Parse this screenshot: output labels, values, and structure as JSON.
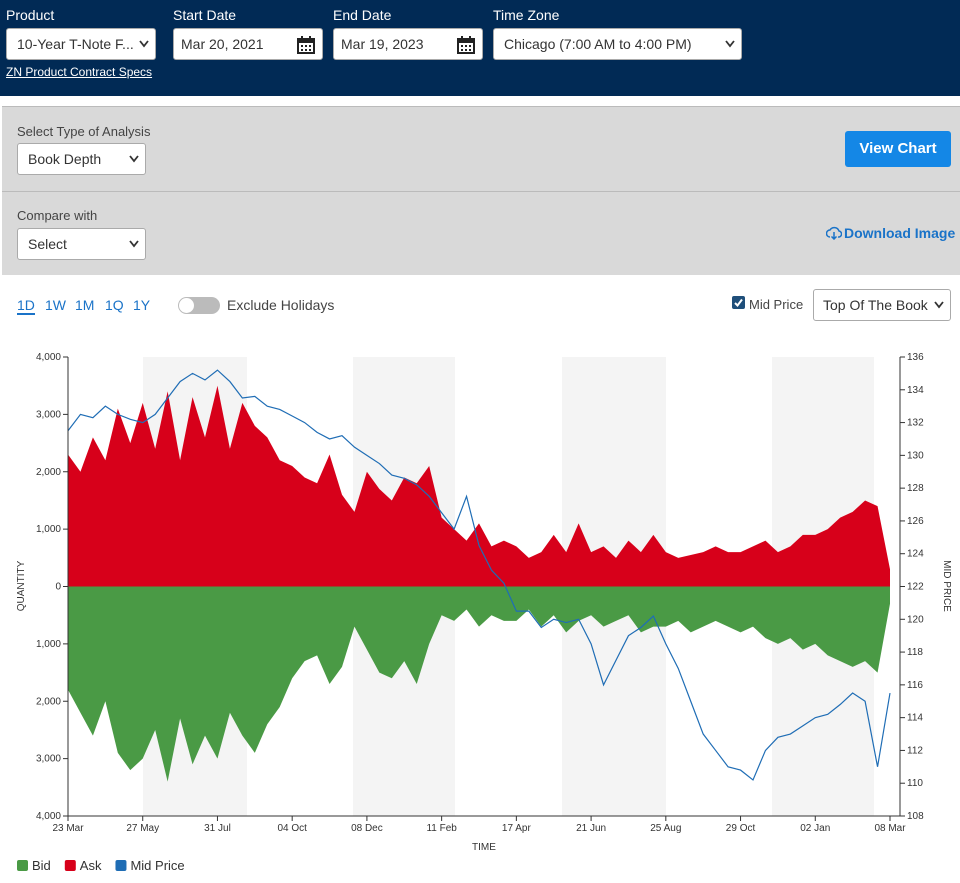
{
  "header": {
    "product_label": "Product",
    "product_value": "10-Year T-Note F...",
    "start_label": "Start Date",
    "start_value": "Mar 20, 2021",
    "end_label": "End Date",
    "end_value": "Mar 19, 2023",
    "tz_label": "Time Zone",
    "tz_value": "Chicago (7:00 AM to 4:00 PM)",
    "specs_link": "ZN Product Contract Specs"
  },
  "controls": {
    "analysis_label": "Select Type of Analysis",
    "analysis_value": "Book Depth",
    "view_button": "View Chart",
    "compare_label": "Compare with",
    "compare_value": "Select",
    "download": "Download Image",
    "ranges": [
      "1D",
      "1W",
      "1M",
      "1Q",
      "1Y"
    ],
    "exclude_holidays": "Exclude Holidays",
    "mid_price_checkbox": "Mid Price",
    "book_select": "Top Of The Book"
  },
  "chart_data": {
    "type": "area",
    "y_label": "QUANTITY",
    "y2_label": "MID PRICE",
    "x_label": "TIME",
    "categories": [
      "23 Mar",
      null,
      null,
      null,
      null,
      null,
      "27 May",
      null,
      null,
      null,
      null,
      null,
      "31 Jul",
      null,
      null,
      null,
      null,
      null,
      "04 Oct",
      null,
      null,
      null,
      null,
      null,
      "08 Dec",
      null,
      null,
      null,
      null,
      null,
      "11 Feb",
      null,
      null,
      null,
      null,
      null,
      "17 Apr",
      null,
      null,
      null,
      null,
      null,
      "21 Jun",
      null,
      null,
      null,
      null,
      null,
      "25 Aug",
      null,
      null,
      null,
      null,
      null,
      "29 Oct",
      null,
      null,
      null,
      null,
      null,
      "02 Jan",
      null,
      null,
      null,
      null,
      null,
      "08 Mar"
    ],
    "series": [
      {
        "name": "Bid",
        "type": "area",
        "color": "#4a9a45",
        "values": [
          -1800,
          -2200,
          -2600,
          -2000,
          -2900,
          -3200,
          -3000,
          -2500,
          -3400,
          -2300,
          -3100,
          -2600,
          -3000,
          -2200,
          -2600,
          -2900,
          -2400,
          -2100,
          -1600,
          -1300,
          -1200,
          -1700,
          -1400,
          -700,
          -1100,
          -1500,
          -1600,
          -1300,
          -1700,
          -1000,
          -500,
          -600,
          -400,
          -700,
          -500,
          -600,
          -600,
          -400,
          -700,
          -500,
          -800,
          -600,
          -500,
          -700,
          -600,
          -500,
          -800,
          -700,
          -700,
          -600,
          -800,
          -700,
          -600,
          -700,
          -800,
          -700,
          -900,
          -1000,
          -900,
          -1100,
          -1000,
          -1200,
          -1300,
          -1400,
          -1300,
          -1500,
          -300
        ]
      },
      {
        "name": "Ask",
        "type": "area",
        "color": "#d7001a",
        "values": [
          2300,
          2000,
          2600,
          2200,
          3100,
          2500,
          3200,
          2400,
          3400,
          2200,
          3300,
          2600,
          3500,
          2400,
          3200,
          2800,
          2600,
          2200,
          2100,
          1900,
          1800,
          2300,
          1600,
          1300,
          2000,
          1700,
          1500,
          1900,
          1800,
          2100,
          1200,
          1000,
          800,
          1100,
          700,
          800,
          700,
          500,
          600,
          900,
          600,
          1100,
          600,
          700,
          500,
          800,
          600,
          900,
          600,
          500,
          550,
          600,
          700,
          600,
          600,
          700,
          800,
          600,
          700,
          900,
          900,
          1000,
          1200,
          1300,
          1500,
          1400,
          300
        ]
      },
      {
        "name": "Mid Price",
        "type": "line",
        "axis": "y2",
        "color": "#1f6db5",
        "values": [
          131.5,
          132.5,
          132.3,
          133,
          132.5,
          132.2,
          132,
          132.5,
          133.5,
          134.5,
          135,
          134.6,
          135.2,
          134.5,
          133.5,
          133.6,
          133,
          132.8,
          132.4,
          132,
          131.4,
          131,
          131.2,
          130.5,
          130,
          129.5,
          128.8,
          128.6,
          128.2,
          127.5,
          126.5,
          125.5,
          127.5,
          124.5,
          123,
          122.2,
          120.5,
          120.5,
          119.5,
          120,
          119.8,
          120,
          118.5,
          116,
          117.5,
          119,
          119.5,
          120.2,
          118.5,
          117,
          115,
          113,
          112,
          111,
          110.8,
          110.2,
          112,
          112.8,
          113,
          113.5,
          114,
          114.2,
          114.8,
          115.5,
          115,
          111,
          115.5
        ]
      }
    ],
    "ylim": [
      -4000,
      4000
    ],
    "yticks": [
      {
        "value": 4000,
        "label": "4,000"
      },
      {
        "value": 3000,
        "label": "3,000"
      },
      {
        "value": 2000,
        "label": "2,000"
      },
      {
        "value": 1000,
        "label": "1,000"
      },
      0,
      {
        "value": -1000,
        "label": "1,000"
      },
      {
        "value": -2000,
        "label": "2,000"
      },
      {
        "value": -3000,
        "label": "3,000"
      },
      {
        "value": -4000,
        "label": "4,000"
      }
    ],
    "y2lim": [
      108,
      136
    ],
    "y2ticks": [
      108,
      110,
      112,
      114,
      116,
      118,
      120,
      122,
      124,
      126,
      128,
      130,
      132,
      134,
      136
    ],
    "legend": "bottom-left"
  }
}
